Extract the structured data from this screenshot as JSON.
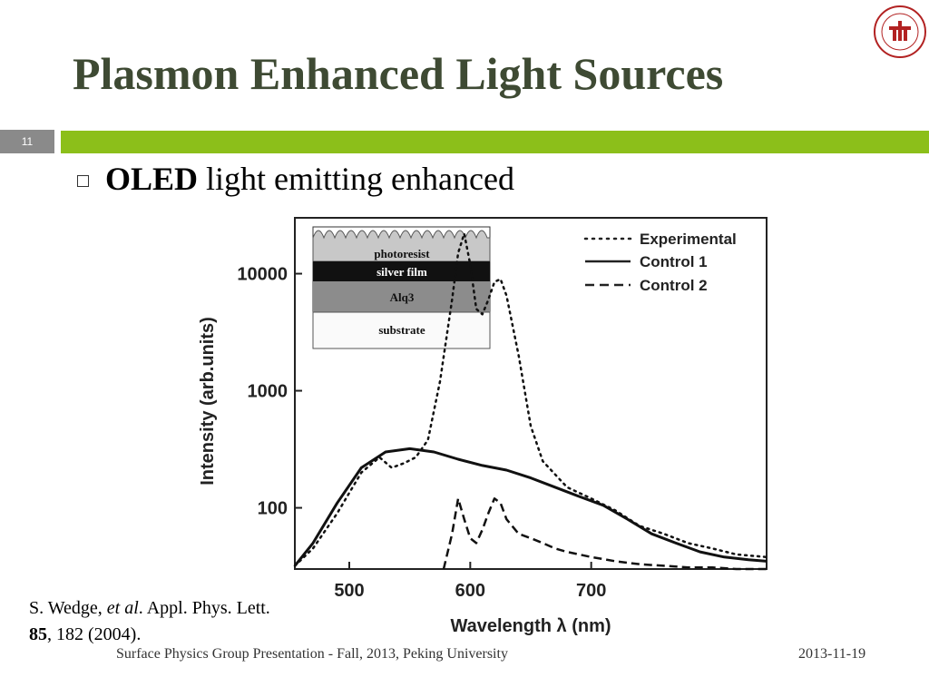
{
  "slide": {
    "title": "Plasmon Enhanced Light Sources",
    "number": "11",
    "accent_color": "#8cbf1a",
    "title_color": "#3e4a33",
    "logo_icon": "peking-university-seal-icon"
  },
  "bullet": {
    "bold": "OLED",
    "text": " light emitting enhanced"
  },
  "citation": {
    "authors": "S. Wedge, ",
    "etal": "et al",
    "journal": ". Appl. Phys. Lett.",
    "volume": "85",
    "pages": ", 182 (2004)."
  },
  "footer": {
    "left": "Surface Physics Group Presentation - Fall, 2013, Peking University",
    "right": "2013-11-19"
  },
  "chart_data": {
    "type": "line",
    "xlabel": "Wavelength λ (nm)",
    "ylabel": "Intensity (arb.units)",
    "xlim": [
      455,
      845
    ],
    "ylim": [
      30,
      30000
    ],
    "yscale": "log",
    "x_ticks": [
      "500",
      "600",
      "700"
    ],
    "y_ticks": [
      "100",
      "1000",
      "10000"
    ],
    "legend": "top-right",
    "series": [
      {
        "name": "Experimental",
        "style": "dotted",
        "x": [
          455,
          470,
          490,
          510,
          525,
          535,
          545,
          555,
          565,
          575,
          585,
          590,
          595,
          600,
          605,
          610,
          615,
          620,
          625,
          630,
          640,
          650,
          660,
          680,
          700,
          720,
          740,
          760,
          780,
          800,
          820,
          845
        ],
        "y": [
          32,
          45,
          90,
          200,
          270,
          220,
          240,
          270,
          380,
          1200,
          6000,
          15000,
          22000,
          12000,
          5000,
          4500,
          6000,
          8500,
          9000,
          6500,
          2000,
          500,
          250,
          150,
          120,
          95,
          70,
          60,
          50,
          45,
          40,
          38
        ]
      },
      {
        "name": "Control 1",
        "style": "solid",
        "x": [
          455,
          470,
          490,
          510,
          530,
          550,
          570,
          590,
          610,
          630,
          650,
          670,
          690,
          710,
          730,
          750,
          770,
          790,
          810,
          830,
          845
        ],
        "y": [
          32,
          50,
          110,
          220,
          300,
          320,
          300,
          260,
          230,
          210,
          180,
          150,
          125,
          105,
          80,
          60,
          50,
          42,
          38,
          36,
          35
        ]
      },
      {
        "name": "Control 2",
        "style": "dashed",
        "x": [
          578,
          585,
          590,
          595,
          600,
          605,
          610,
          615,
          620,
          625,
          630,
          640,
          650,
          660,
          670,
          680,
          700,
          720,
          740,
          760,
          780,
          800,
          820,
          845
        ],
        "y": [
          30,
          60,
          120,
          80,
          55,
          50,
          65,
          90,
          120,
          110,
          80,
          60,
          55,
          50,
          45,
          42,
          38,
          35,
          33,
          32,
          31,
          31,
          30,
          30
        ]
      }
    ],
    "inset_layers": [
      "photoresist",
      "silver film",
      "Alq3",
      "substrate"
    ]
  }
}
